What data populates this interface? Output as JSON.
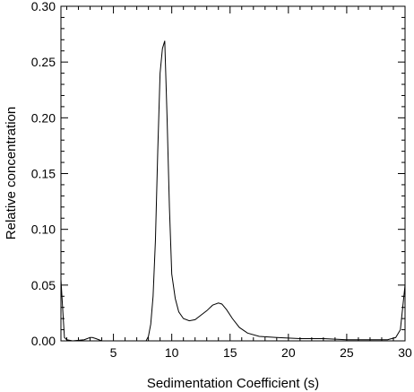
{
  "chart_data": {
    "type": "line",
    "xlabel": "Sedimentation Coefficient (s)",
    "ylabel": "Relative concentration",
    "xlim": [
      0.5,
      30
    ],
    "ylim": [
      0,
      0.3
    ],
    "x_ticks": [
      5,
      10,
      15,
      20,
      25,
      30
    ],
    "x_tick_labels": [
      "5",
      "10",
      "15",
      "20",
      "25",
      "30"
    ],
    "y_ticks": [
      0,
      0.05,
      0.1,
      0.15,
      0.2,
      0.25,
      0.3
    ],
    "y_tick_labels": [
      "0.00",
      "0.05",
      "0.10",
      "0.15",
      "0.20",
      "0.25",
      "0.30"
    ],
    "grid": false,
    "legend": "none",
    "series": [
      {
        "x": [
          0.5,
          0.7,
          0.8,
          1.0,
          1.5,
          2.5,
          3.0,
          3.2,
          3.5,
          4.0,
          5.0,
          7.0,
          7.8,
          8.0,
          8.2,
          8.4,
          8.6,
          8.8,
          9.0,
          9.2,
          9.4,
          9.6,
          9.8,
          10.0,
          10.3,
          10.6,
          11.0,
          11.5,
          12.0,
          12.5,
          13.0,
          13.5,
          14.0,
          14.3,
          14.7,
          15.2,
          15.8,
          16.5,
          17.5,
          19.0,
          21.0,
          23.0,
          25.0,
          27.0,
          28.5,
          29.2,
          29.6,
          29.8,
          30.0
        ],
        "y": [
          0.055,
          0.02,
          0.003,
          0.001,
          0.0,
          0.001,
          0.003,
          0.003,
          0.002,
          0.0,
          0.0,
          0.0,
          0.0,
          0.004,
          0.015,
          0.04,
          0.09,
          0.17,
          0.24,
          0.262,
          0.269,
          0.2,
          0.12,
          0.06,
          0.038,
          0.026,
          0.02,
          0.018,
          0.019,
          0.023,
          0.027,
          0.032,
          0.034,
          0.033,
          0.028,
          0.02,
          0.012,
          0.007,
          0.004,
          0.003,
          0.002,
          0.002,
          0.001,
          0.001,
          0.001,
          0.003,
          0.01,
          0.03,
          0.05
        ],
        "color": "#000000"
      }
    ]
  }
}
